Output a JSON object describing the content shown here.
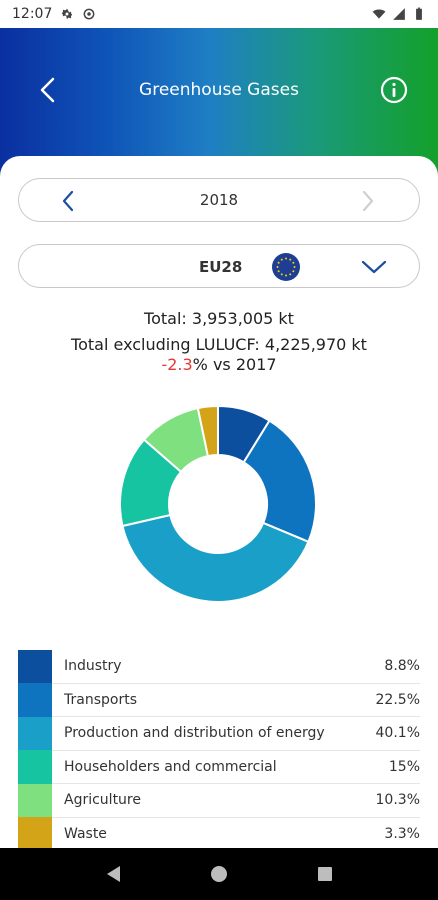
{
  "status_bar": {
    "time": "12:07",
    "icons_left": [
      "gear-icon",
      "sync-icon"
    ],
    "icons_right": [
      "wifi-icon",
      "signal-icon",
      "battery-icon"
    ]
  },
  "header": {
    "title": "Greenhouse Gases",
    "back_icon": "chevron-left-icon",
    "info_icon": "info-icon"
  },
  "year_selector": {
    "value": "2018",
    "prev_icon": "chevron-left-icon",
    "next_icon": "chevron-right-icon"
  },
  "region_selector": {
    "value": "EU28",
    "flag_icon": "eu-flag-icon",
    "dropdown_icon": "chevron-down-icon"
  },
  "totals": {
    "total": "Total: 3,953,005 kt",
    "total_excluding": "Total excluding LULUCF: 4,225,970 kt",
    "change_value": "-2.3",
    "change_suffix": "% vs 2017"
  },
  "colors": {
    "accent_negative": "#e53935"
  },
  "chart_data": {
    "type": "pie",
    "categories": [
      "Industry",
      "Transports",
      "Production and distribution of energy",
      "Householders and commercial",
      "Agriculture",
      "Waste"
    ],
    "values": [
      8.8,
      22.5,
      40.1,
      15,
      10.3,
      3.3
    ],
    "colors": [
      "#0b4f9e",
      "#0f74c0",
      "#1a9fc9",
      "#17c4a2",
      "#7ee07f",
      "#d4a418"
    ],
    "donut": true
  },
  "legend": [
    {
      "label": "Industry",
      "value": "8.8%",
      "color": "#0b4f9e"
    },
    {
      "label": "Transports",
      "value": "22.5%",
      "color": "#0f74c0"
    },
    {
      "label": "Production and distribution of energy",
      "value": "40.1%",
      "color": "#1a9fc9"
    },
    {
      "label": "Householders and commercial",
      "value": "15%",
      "color": "#17c4a2"
    },
    {
      "label": "Agriculture",
      "value": "10.3%",
      "color": "#7ee07f"
    },
    {
      "label": "Waste",
      "value": "3.3%",
      "color": "#d4a418"
    }
  ],
  "nav_bar": {
    "back": "triangle-back-icon",
    "home": "circle-home-icon",
    "recents": "square-recents-icon"
  }
}
